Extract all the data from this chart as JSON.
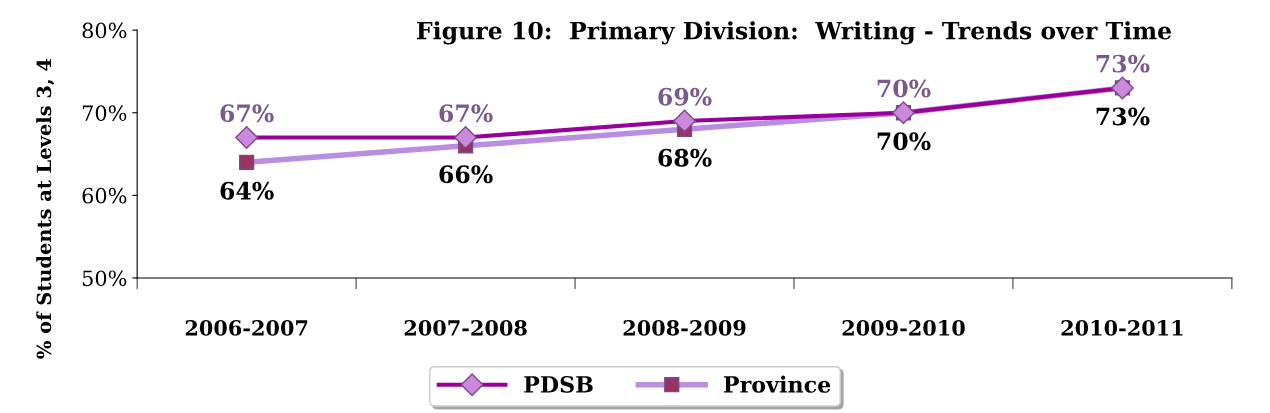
{
  "chart_data": {
    "type": "line",
    "title": "Figure 10:  Primary Division:  Writing - Trends over Time",
    "ylabel": "% of Students at Levels 3, 4",
    "categories": [
      "2006-2007",
      "2007-2008",
      "2008-2009",
      "2009-2010",
      "2010-2011"
    ],
    "series": [
      {
        "name": "PDSB",
        "color": "#990099",
        "marker": "diamond",
        "values": [
          67,
          67,
          69,
          70,
          73
        ],
        "value_labels": [
          "67%",
          "67%",
          "69%",
          "70%",
          "73%"
        ]
      },
      {
        "name": "Province",
        "color": "#b98ee0",
        "marker": "square",
        "values": [
          64,
          66,
          68,
          70,
          73
        ],
        "value_labels": [
          "64%",
          "66%",
          "68%",
          "70%",
          "73%"
        ]
      }
    ],
    "ylim": [
      50,
      80
    ],
    "yticks": [
      {
        "value": 50,
        "label": "50%"
      },
      {
        "value": 60,
        "label": "60%"
      },
      {
        "value": 70,
        "label": "70%"
      },
      {
        "value": 80,
        "label": "80%"
      }
    ],
    "grid": false,
    "legend": "bottom"
  }
}
